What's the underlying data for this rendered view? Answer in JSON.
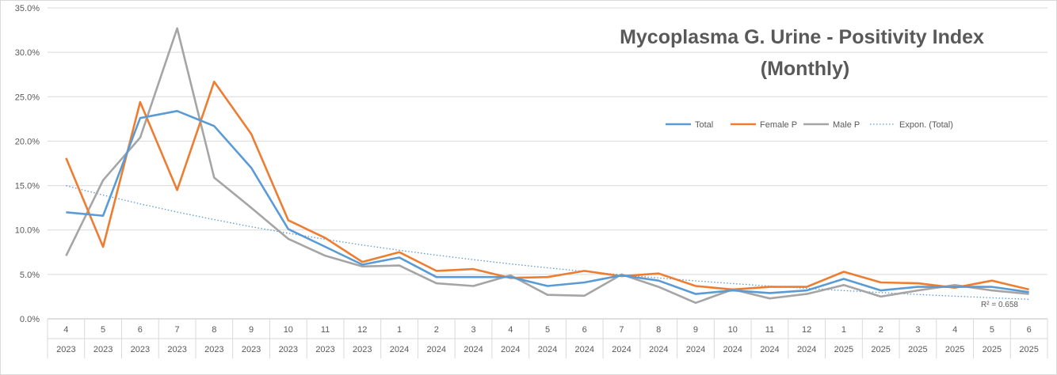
{
  "chart_data": {
    "type": "line",
    "title_line1": "Mycoplasma G. Urine - Positivity Index",
    "title_line2": "(Monthly)",
    "months": [
      "4",
      "5",
      "6",
      "7",
      "8",
      "9",
      "10",
      "11",
      "12",
      "1",
      "2",
      "3",
      "4",
      "5",
      "6",
      "7",
      "8",
      "9",
      "10",
      "11",
      "12",
      "1",
      "2",
      "3",
      "4",
      "5",
      "6"
    ],
    "years": [
      "2023",
      "2023",
      "2023",
      "2023",
      "2023",
      "2023",
      "2023",
      "2023",
      "2023",
      "2024",
      "2024",
      "2024",
      "2024",
      "2024",
      "2024",
      "2024",
      "2024",
      "2024",
      "2024",
      "2024",
      "2024",
      "2025",
      "2025",
      "2025",
      "2025",
      "2025",
      "2025"
    ],
    "y_ticks": [
      "0.0%",
      "5.0%",
      "10.0%",
      "15.0%",
      "20.0%",
      "25.0%",
      "30.0%",
      "35.0%"
    ],
    "ylim": [
      0,
      35
    ],
    "grid": true,
    "legend_position": "top-right",
    "series": [
      {
        "name": "Total",
        "color": "#5b9bd5",
        "values": [
          12.0,
          11.6,
          22.6,
          23.4,
          21.7,
          17.0,
          10.1,
          8.1,
          6.1,
          6.9,
          4.7,
          4.7,
          4.7,
          3.7,
          4.1,
          4.9,
          4.3,
          2.8,
          3.2,
          2.9,
          3.2,
          4.5,
          3.2,
          3.6,
          3.6,
          3.6,
          3.0
        ]
      },
      {
        "name": "Female P",
        "color": "#ed7d31",
        "values": [
          18.1,
          8.1,
          24.4,
          14.5,
          26.7,
          20.8,
          11.1,
          9.1,
          6.4,
          7.5,
          5.4,
          5.6,
          4.6,
          4.7,
          5.4,
          4.8,
          5.1,
          3.7,
          3.3,
          3.6,
          3.6,
          5.3,
          4.1,
          4.0,
          3.5,
          4.3,
          3.3
        ]
      },
      {
        "name": "Male P",
        "color": "#a5a5a5",
        "values": [
          7.1,
          15.6,
          20.4,
          32.7,
          15.9,
          12.5,
          9.0,
          7.1,
          5.9,
          6.0,
          4.0,
          3.7,
          4.9,
          2.7,
          2.6,
          5.0,
          3.6,
          1.8,
          3.3,
          2.3,
          2.8,
          3.8,
          2.5,
          3.2,
          3.8,
          3.2,
          2.8
        ]
      }
    ],
    "trendline": {
      "name": "Expon. (Total)",
      "color": "#5b9bd5",
      "start": 15.0,
      "end": 2.2
    },
    "r_squared_label": "R² = 0.658"
  }
}
